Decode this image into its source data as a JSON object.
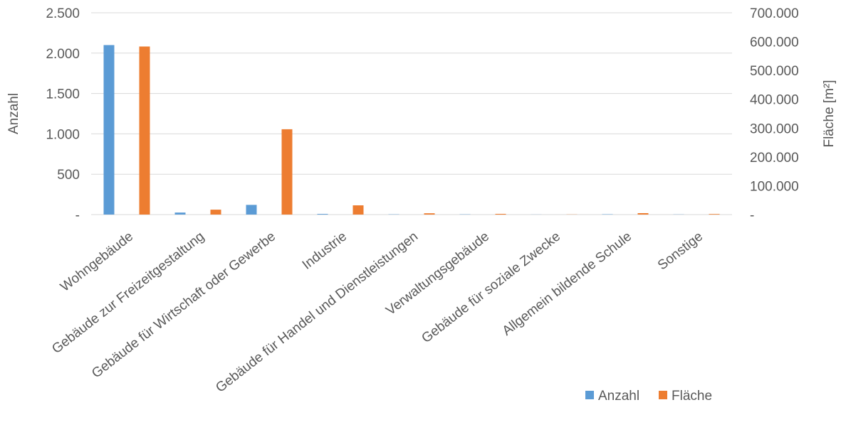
{
  "chart_data": {
    "type": "bar",
    "categories": [
      "Wohngebäude",
      "Gebäude zur Freizeitgestaltung",
      "Gebäude für Wirtschaft oder Gewerbe",
      "Industrie",
      "Gebäude für Handel und Dienstleistungen",
      "Verwaltungsgebäude",
      "Gebäude für soziale Zwecke",
      "Allgemein bildende Schule",
      "Sonstige"
    ],
    "series": [
      {
        "name": "Anzahl",
        "axis": "left",
        "color": "#5b9bd5",
        "values": [
          2100,
          25,
          120,
          8,
          3,
          3,
          1,
          4,
          2
        ]
      },
      {
        "name": "Fläche",
        "axis": "right",
        "color": "#ed7d31",
        "values": [
          583000,
          17000,
          296000,
          32000,
          4500,
          2500,
          500,
          5000,
          2000
        ]
      }
    ],
    "y_left": {
      "label": "Anzahl",
      "lim": [
        0,
        2500
      ],
      "ticks": [
        0,
        500,
        1000,
        1500,
        2000,
        2500
      ],
      "tick_labels": [
        "-",
        "500",
        "1.000",
        "1.500",
        "2.000",
        "2.500"
      ]
    },
    "y_right": {
      "label": "Fläche [m²]",
      "lim": [
        0,
        700000
      ],
      "ticks": [
        0,
        100000,
        200000,
        300000,
        400000,
        500000,
        600000,
        700000
      ],
      "tick_labels": [
        "-",
        "100.000",
        "200.000",
        "300.000",
        "400.000",
        "500.000",
        "600.000",
        "700.000"
      ]
    },
    "grid": true,
    "legend_position": "bottom-right"
  }
}
